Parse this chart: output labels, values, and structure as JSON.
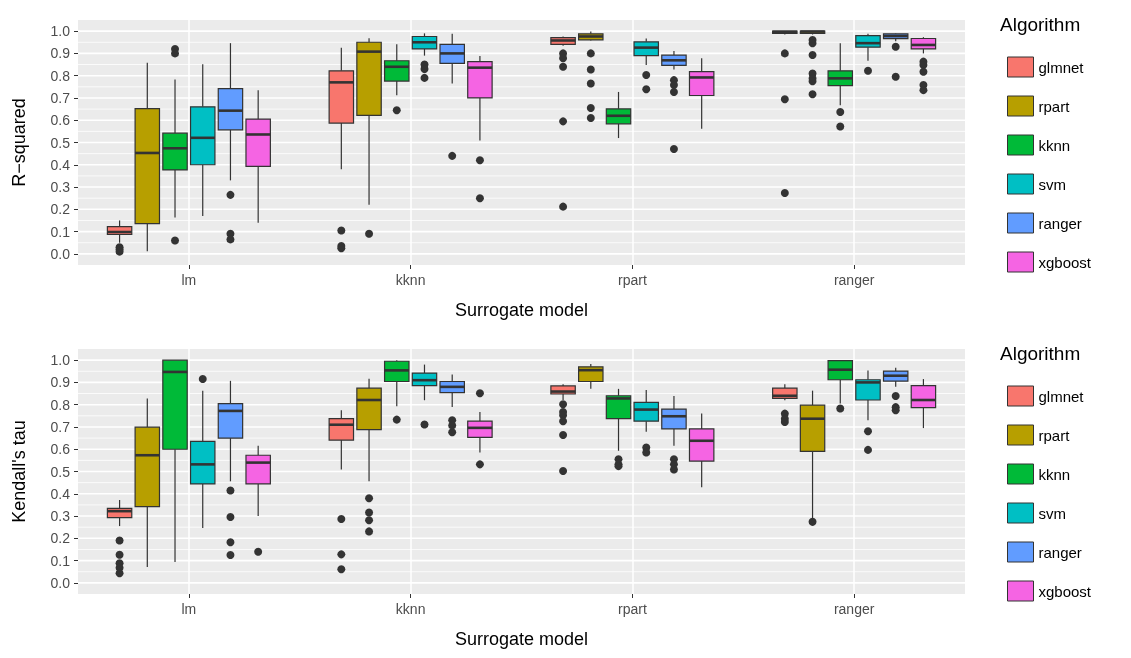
{
  "chart_data": [
    {
      "type": "box",
      "xlabel": "Surrogate model",
      "ylabel": "R−squared",
      "legend_title": "Algorithm",
      "legend": "right",
      "grid": true,
      "categories": [
        "lm",
        "kknn",
        "rpart",
        "ranger"
      ],
      "ylim": [
        -0.05,
        1.05
      ],
      "yticks": [
        {
          "value": 0,
          "label": "0.0"
        },
        {
          "value": 0.1,
          "label": "0.1"
        },
        {
          "value": 0.2,
          "label": "0.2"
        },
        {
          "value": 0.3,
          "label": "0.3"
        },
        {
          "value": 0.4,
          "label": "0.4"
        },
        {
          "value": 0.5,
          "label": "0.5"
        },
        {
          "value": 0.6,
          "label": "0.6"
        },
        {
          "value": 0.7,
          "label": "0.7"
        },
        {
          "value": 0.8,
          "label": "0.8"
        },
        {
          "value": 0.9,
          "label": "0.9"
        },
        {
          "value": 1,
          "label": "1.0"
        }
      ],
      "series": [
        {
          "name": "glmnet",
          "color": "#f8766d",
          "boxes": [
            {
              "low": 0.05,
              "q1": 0.087,
              "median": 0.098,
              "q3": 0.122,
              "high": 0.15,
              "outliers": [
                0.03,
                0.02,
                0.01
              ]
            },
            {
              "low": 0.38,
              "q1": 0.587,
              "median": 0.77,
              "q3": 0.822,
              "high": 0.925,
              "outliers": [
                0.105,
                0.035,
                0.025
              ]
            },
            {
              "low": 0.934,
              "q1": 0.941,
              "median": 0.958,
              "q3": 0.971,
              "high": 0.976,
              "outliers": [
                0.9,
                0.878,
                0.84,
                0.595,
                0.212
              ]
            },
            {
              "low": 0.985,
              "q1": 0.99,
              "median": 0.997,
              "q3": 1.0,
              "high": 1.0,
              "outliers": [
                0.9,
                0.694,
                0.273
              ]
            }
          ]
        },
        {
          "name": "rpart",
          "color": "#b79f00",
          "boxes": [
            {
              "low": 0.012,
              "q1": 0.136,
              "median": 0.453,
              "q3": 0.652,
              "high": 0.858
            },
            {
              "low": 0.22,
              "q1": 0.622,
              "median": 0.908,
              "q3": 0.95,
              "high": 0.968,
              "outliers": [
                0.09
              ]
            },
            {
              "low": 0.958,
              "q1": 0.961,
              "median": 0.976,
              "q3": 0.988,
              "high": 0.998,
              "outliers": [
                0.9,
                0.828,
                0.765,
                0.655,
                0.61
              ]
            },
            {
              "low": 0.985,
              "q1": 0.99,
              "median": 0.998,
              "q3": 1.0,
              "high": 1.0,
              "outliers": [
                0.96,
                0.946,
                0.893,
                0.81,
                0.788,
                0.775,
                0.717
              ]
            }
          ]
        },
        {
          "name": "kknn",
          "color": "#00ba38",
          "boxes": [
            {
              "low": 0.163,
              "q1": 0.377,
              "median": 0.474,
              "q3": 0.542,
              "high": 0.783,
              "outliers": [
                0.92,
                0.9,
                0.06
              ]
            },
            {
              "low": 0.712,
              "q1": 0.776,
              "median": 0.84,
              "q3": 0.867,
              "high": 0.941,
              "outliers": [
                0.645
              ]
            },
            {
              "low": 0.52,
              "q1": 0.584,
              "median": 0.62,
              "q3": 0.651,
              "high": 0.727
            },
            {
              "low": 0.667,
              "q1": 0.755,
              "median": 0.788,
              "q3": 0.822,
              "high": 0.946,
              "outliers": [
                0.637,
                0.572
              ]
            }
          ]
        },
        {
          "name": "svm",
          "color": "#00bfc4",
          "boxes": [
            {
              "low": 0.17,
              "q1": 0.4,
              "median": 0.521,
              "q3": 0.66,
              "high": 0.851
            },
            {
              "low": 0.89,
              "q1": 0.92,
              "median": 0.95,
              "q3": 0.976,
              "high": 0.99,
              "outliers": [
                0.85,
                0.83,
                0.79
              ]
            },
            {
              "low": 0.848,
              "q1": 0.89,
              "median": 0.926,
              "q3": 0.952,
              "high": 0.967,
              "outliers": [
                0.803,
                0.739
              ]
            },
            {
              "low": 0.867,
              "q1": 0.928,
              "median": 0.946,
              "q3": 0.98,
              "high": 0.988,
              "outliers": [
                0.822
              ]
            }
          ]
        },
        {
          "name": "ranger",
          "color": "#619cff",
          "boxes": [
            {
              "low": 0.33,
              "q1": 0.557,
              "median": 0.643,
              "q3": 0.742,
              "high": 0.946,
              "outliers": [
                0.265,
                0.09,
                0.065
              ]
            },
            {
              "low": 0.765,
              "q1": 0.855,
              "median": 0.9,
              "q3": 0.941,
              "high": 0.988,
              "outliers": [
                0.44
              ]
            },
            {
              "low": 0.828,
              "q1": 0.846,
              "median": 0.869,
              "q3": 0.892,
              "high": 0.911,
              "outliers": [
                0.78,
                0.758,
                0.727,
                0.471
              ]
            },
            {
              "low": 0.955,
              "q1": 0.966,
              "median": 0.978,
              "q3": 0.988,
              "high": 0.99,
              "outliers": [
                0.93,
                0.795
              ]
            }
          ]
        },
        {
          "name": "xgboost",
          "color": "#f564e3",
          "boxes": [
            {
              "low": 0.14,
              "q1": 0.393,
              "median": 0.536,
              "q3": 0.605,
              "high": 0.735
            },
            {
              "low": 0.509,
              "q1": 0.7,
              "median": 0.836,
              "q3": 0.863,
              "high": 0.888,
              "outliers": [
                0.42,
                0.25
              ]
            },
            {
              "low": 0.562,
              "q1": 0.711,
              "median": 0.792,
              "q3": 0.818,
              "high": 0.878
            },
            {
              "low": 0.9,
              "q1": 0.92,
              "median": 0.938,
              "q3": 0.967,
              "high": 0.973,
              "outliers": [
                0.863,
                0.848,
                0.818,
                0.758,
                0.735
              ]
            }
          ]
        }
      ]
    },
    {
      "type": "box",
      "xlabel": "Surrogate model",
      "ylabel": "Kendall's tau",
      "legend_title": "Algorithm",
      "legend": "right",
      "grid": true,
      "categories": [
        "lm",
        "kknn",
        "rpart",
        "ranger"
      ],
      "ylim": [
        -0.05,
        1.05
      ],
      "yticks": [
        {
          "value": 0,
          "label": "0.0"
        },
        {
          "value": 0.1,
          "label": "0.1"
        },
        {
          "value": 0.2,
          "label": "0.2"
        },
        {
          "value": 0.3,
          "label": "0.3"
        },
        {
          "value": 0.4,
          "label": "0.4"
        },
        {
          "value": 0.5,
          "label": "0.5"
        },
        {
          "value": 0.6,
          "label": "0.6"
        },
        {
          "value": 0.7,
          "label": "0.7"
        },
        {
          "value": 0.8,
          "label": "0.8"
        },
        {
          "value": 0.9,
          "label": "0.9"
        },
        {
          "value": 1,
          "label": "1.0"
        }
      ],
      "series": [
        {
          "name": "glmnet",
          "color": "#f8766d",
          "boxes": [
            {
              "low": 0.255,
              "q1": 0.293,
              "median": 0.322,
              "q3": 0.334,
              "high": 0.372,
              "outliers": [
                0.19,
                0.126,
                0.088,
                0.068,
                0.043
              ]
            },
            {
              "low": 0.509,
              "q1": 0.641,
              "median": 0.71,
              "q3": 0.737,
              "high": 0.775,
              "outliers": [
                0.287,
                0.128,
                0.061
              ]
            },
            {
              "low": 0.821,
              "q1": 0.848,
              "median": 0.859,
              "q3": 0.884,
              "high": 0.892,
              "outliers": [
                0.802,
                0.767,
                0.752,
                0.726,
                0.664,
                0.502
              ]
            },
            {
              "low": 0.82,
              "q1": 0.828,
              "median": 0.84,
              "q3": 0.874,
              "high": 0.892,
              "outliers": [
                0.76,
                0.737,
                0.722
              ]
            }
          ]
        },
        {
          "name": "rpart",
          "color": "#b79f00",
          "boxes": [
            {
              "low": 0.071,
              "q1": 0.342,
              "median": 0.573,
              "q3": 0.699,
              "high": 0.828
            },
            {
              "low": 0.456,
              "q1": 0.688,
              "median": 0.821,
              "q3": 0.874,
              "high": 0.916,
              "outliers": [
                0.38,
                0.316,
                0.281,
                0.231
              ]
            },
            {
              "low": 0.871,
              "q1": 0.904,
              "median": 0.955,
              "q3": 0.97,
              "high": 0.983
            },
            {
              "low": 0.285,
              "q1": 0.59,
              "median": 0.737,
              "q3": 0.798,
              "high": 0.863,
              "outliers": [
                0.274
              ]
            }
          ]
        },
        {
          "name": "kknn",
          "color": "#00ba38",
          "boxes": [
            {
              "low": 0.094,
              "q1": 0.6,
              "median": 0.947,
              "q3": 1.0,
              "high": 1.0
            },
            {
              "low": 0.793,
              "q1": 0.904,
              "median": 0.954,
              "q3": 0.995,
              "high": 1.0,
              "outliers": [
                0.733
              ]
            },
            {
              "low": 0.593,
              "q1": 0.737,
              "median": 0.828,
              "q3": 0.84,
              "high": 0.871,
              "outliers": [
                0.555,
                0.532,
                0.524
              ]
            },
            {
              "low": 0.805,
              "q1": 0.912,
              "median": 0.957,
              "q3": 0.998,
              "high": 1.0,
              "outliers": [
                0.783
              ]
            }
          ]
        },
        {
          "name": "svm",
          "color": "#00bfc4",
          "boxes": [
            {
              "low": 0.246,
              "q1": 0.444,
              "median": 0.532,
              "q3": 0.635,
              "high": 0.863,
              "outliers": [
                0.915
              ]
            },
            {
              "low": 0.82,
              "q1": 0.886,
              "median": 0.91,
              "q3": 0.942,
              "high": 0.98,
              "outliers": [
                0.711
              ]
            },
            {
              "low": 0.679,
              "q1": 0.726,
              "median": 0.778,
              "q3": 0.81,
              "high": 0.866,
              "outliers": [
                0.608,
                0.585
              ]
            },
            {
              "low": 0.73,
              "q1": 0.821,
              "median": 0.9,
              "q3": 0.912,
              "high": 0.954,
              "outliers": [
                0.681,
                0.597
              ]
            }
          ]
        },
        {
          "name": "ranger",
          "color": "#619cff",
          "boxes": [
            {
              "low": 0.456,
              "q1": 0.65,
              "median": 0.772,
              "q3": 0.805,
              "high": 0.907,
              "outliers": [
                0.415,
                0.296,
                0.182,
                0.125
              ]
            },
            {
              "low": 0.79,
              "q1": 0.854,
              "median": 0.88,
              "q3": 0.904,
              "high": 0.935,
              "outliers": [
                0.73,
                0.707,
                0.676
              ]
            },
            {
              "low": 0.616,
              "q1": 0.691,
              "median": 0.748,
              "q3": 0.78,
              "high": 0.839,
              "outliers": [
                0.555,
                0.532,
                0.509
              ]
            },
            {
              "low": 0.88,
              "q1": 0.906,
              "median": 0.93,
              "q3": 0.951,
              "high": 0.966,
              "outliers": [
                0.839,
                0.789,
                0.775
              ]
            }
          ]
        },
        {
          "name": "xgboost",
          "color": "#f564e3",
          "boxes": [
            {
              "low": 0.3,
              "q1": 0.444,
              "median": 0.54,
              "q3": 0.573,
              "high": 0.616,
              "outliers": [
                0.14
              ]
            },
            {
              "low": 0.585,
              "q1": 0.653,
              "median": 0.696,
              "q3": 0.726,
              "high": 0.767,
              "outliers": [
                0.851,
                0.532
              ]
            },
            {
              "low": 0.429,
              "q1": 0.547,
              "median": 0.638,
              "q3": 0.691,
              "high": 0.76
            },
            {
              "low": 0.695,
              "q1": 0.787,
              "median": 0.821,
              "q3": 0.886,
              "high": 0.915
            }
          ]
        }
      ]
    }
  ]
}
